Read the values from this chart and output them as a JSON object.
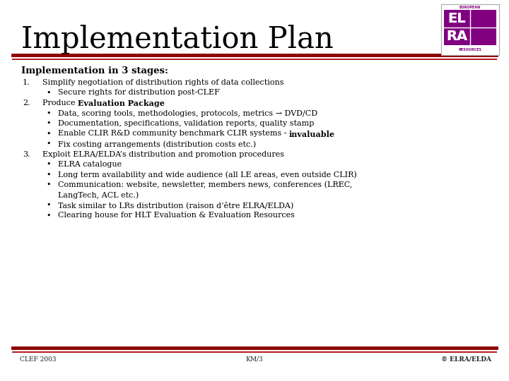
{
  "title": "Implementation Plan",
  "subtitle": "Implementation in 3 stages:",
  "bg_color": "#ffffff",
  "title_color": "#000000",
  "subtitle_color": "#000000",
  "text_color": "#000000",
  "line_color_dark": "#8B0000",
  "line_color_light": "#b22222",
  "footer_left": "CLEF 2003",
  "footer_center": "KM/3",
  "footer_right": "® ELRA/ELDA",
  "logo_bg": "#800080",
  "items": [
    {
      "num": "1.",
      "text": "Simplify negotiation of distribution rights of data collections",
      "bold": false,
      "indent": 1
    },
    {
      "num": "•",
      "text": "Secure rights for distribution post-CLEF",
      "bold": false,
      "indent": 2
    },
    {
      "num": "2.",
      "text_parts": [
        {
          "text": "Produce ",
          "bold": false
        },
        {
          "text": "Evaluation Package",
          "bold": true
        }
      ],
      "indent": 1
    },
    {
      "num": "•",
      "text": "Data, scoring tools, methodologies, protocols, metrics → DVD/CD",
      "bold": false,
      "indent": 2
    },
    {
      "num": "•",
      "text": "Documentation, specifications, validation reports, quality stamp",
      "bold": false,
      "indent": 2
    },
    {
      "num": "•",
      "text_parts": [
        {
          "text": "Enable CLIR R&D community benchmark CLIR systems - ",
          "bold": false
        },
        {
          "text": "invaluable",
          "bold": true
        }
      ],
      "indent": 2
    },
    {
      "num": "•",
      "text": "Fix costing arrangements (distribution costs etc.)",
      "bold": false,
      "indent": 2
    },
    {
      "num": "3.",
      "text": "Exploit ELRA/ELDA’s distribution and promotion procedures",
      "bold": false,
      "indent": 1
    },
    {
      "num": "•",
      "text": "ELRA catalogue",
      "bold": false,
      "indent": 2
    },
    {
      "num": "•",
      "text": "Long term availability and wide audience (all LE areas, even outside CLIR)",
      "bold": false,
      "indent": 2
    },
    {
      "num": "•",
      "text": "Communication: website, newsletter, members news, conferences (LREC,",
      "text2": "LangTech, ACL etc.)",
      "bold": false,
      "indent": 2
    },
    {
      "num": "•",
      "text": "Task similar to LRs distribution (raison d’être ELRA/ELDA)",
      "bold": false,
      "indent": 2
    },
    {
      "num": "•",
      "text": "Clearing house for HLT Evaluation & Evaluation Resources",
      "bold": false,
      "indent": 2
    }
  ]
}
